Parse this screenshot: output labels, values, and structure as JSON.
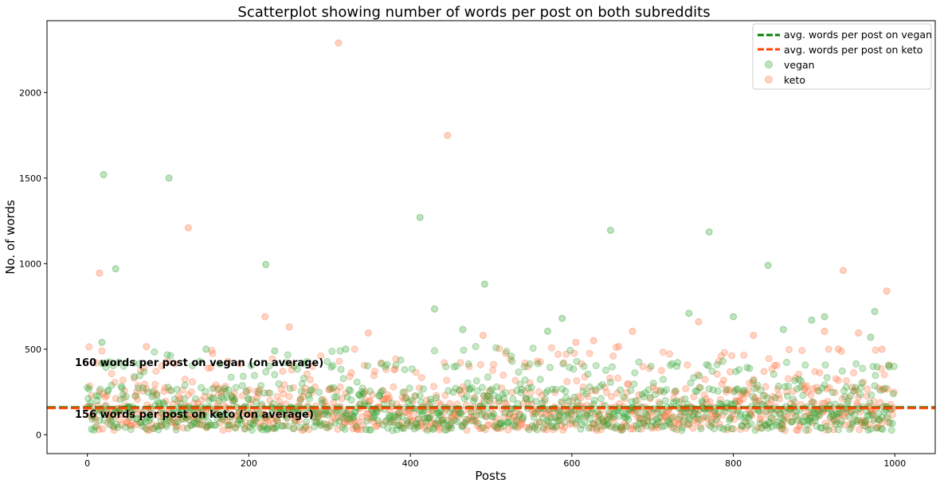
{
  "chart_data": {
    "type": "scatter",
    "title": "Scatterplot showing number of words per post on both subreddits",
    "xlabel": "Posts",
    "ylabel": "No. of words",
    "xlim": [
      -50,
      1050
    ],
    "ylim": [
      -110,
      2420
    ],
    "x_ticks": [
      0,
      200,
      400,
      600,
      800,
      1000
    ],
    "y_ticks": [
      0,
      500,
      1000,
      1500,
      2000
    ],
    "grid": false,
    "legend_position": "top-right",
    "averages": [
      {
        "name": "avg. words per post on vegan",
        "value": 160,
        "color": "#008000",
        "style": "dashed"
      },
      {
        "name": "avg. words per post on keto",
        "value": 156,
        "color": "#ff4500",
        "style": "dashed"
      }
    ],
    "annotations": [
      {
        "text": "160 words per post on vegan (on average)",
        "x": -15,
        "y": 410
      },
      {
        "text": "156 words per post on keto (on average)",
        "x": -15,
        "y": 105
      }
    ],
    "series": [
      {
        "name": "vegan",
        "color": "#2ca02c",
        "alpha": 0.25,
        "count": 1000,
        "typical_range": [
          0,
          300
        ],
        "notable_points": [
          {
            "x": 20,
            "y": 1520
          },
          {
            "x": 101,
            "y": 1500
          },
          {
            "x": 35,
            "y": 970
          },
          {
            "x": 18,
            "y": 540
          },
          {
            "x": 147,
            "y": 500
          },
          {
            "x": 221,
            "y": 995
          },
          {
            "x": 412,
            "y": 1270
          },
          {
            "x": 430,
            "y": 735
          },
          {
            "x": 492,
            "y": 880
          },
          {
            "x": 465,
            "y": 615
          },
          {
            "x": 588,
            "y": 680
          },
          {
            "x": 570,
            "y": 605
          },
          {
            "x": 648,
            "y": 1195
          },
          {
            "x": 770,
            "y": 1185
          },
          {
            "x": 745,
            "y": 710
          },
          {
            "x": 843,
            "y": 990
          },
          {
            "x": 800,
            "y": 690
          },
          {
            "x": 862,
            "y": 615
          },
          {
            "x": 897,
            "y": 670
          },
          {
            "x": 913,
            "y": 690
          },
          {
            "x": 975,
            "y": 720
          },
          {
            "x": 970,
            "y": 570
          },
          {
            "x": 320,
            "y": 500
          },
          {
            "x": 232,
            "y": 490
          }
        ]
      },
      {
        "name": "keto",
        "color": "#ff7f50",
        "alpha": 0.3,
        "count": 1000,
        "typical_range": [
          0,
          300
        ],
        "notable_points": [
          {
            "x": 311,
            "y": 2290
          },
          {
            "x": 446,
            "y": 1750
          },
          {
            "x": 125,
            "y": 1210
          },
          {
            "x": 15,
            "y": 945
          },
          {
            "x": 220,
            "y": 690
          },
          {
            "x": 250,
            "y": 630
          },
          {
            "x": 348,
            "y": 595
          },
          {
            "x": 490,
            "y": 580
          },
          {
            "x": 675,
            "y": 605
          },
          {
            "x": 757,
            "y": 660
          },
          {
            "x": 936,
            "y": 960
          },
          {
            "x": 990,
            "y": 840
          },
          {
            "x": 955,
            "y": 595
          },
          {
            "x": 913,
            "y": 605
          },
          {
            "x": 825,
            "y": 580
          },
          {
            "x": 605,
            "y": 540
          },
          {
            "x": 627,
            "y": 550
          },
          {
            "x": 73,
            "y": 515
          },
          {
            "x": 984,
            "y": 500
          },
          {
            "x": 930,
            "y": 500
          }
        ]
      }
    ]
  }
}
